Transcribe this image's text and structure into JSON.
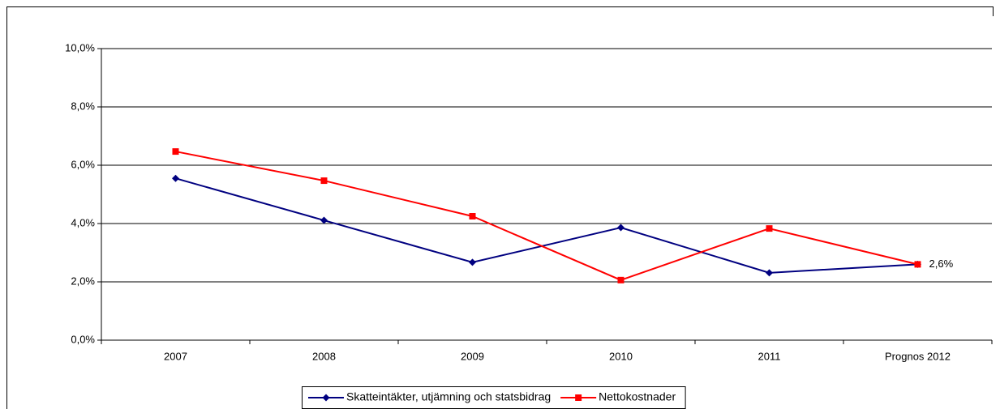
{
  "chart_data": {
    "type": "line",
    "categories": [
      "2007",
      "2008",
      "2009",
      "2010",
      "2011",
      "Prognos 2012"
    ],
    "series": [
      {
        "name": "Skatteintäkter, utjämning och statsbidrag",
        "color": "#000080",
        "marker": "diamond",
        "values": [
          5.55,
          4.11,
          2.67,
          3.86,
          2.31,
          2.6
        ]
      },
      {
        "name": "Nettokostnader",
        "color": "#ff0000",
        "marker": "square",
        "values": [
          6.47,
          5.47,
          4.25,
          2.06,
          3.83,
          2.6
        ],
        "value_labels": [
          null,
          null,
          null,
          null,
          null,
          "2,6%"
        ]
      }
    ],
    "ylim": [
      0,
      10
    ],
    "yticks": [
      {
        "value": 0,
        "label": "0,0%"
      },
      {
        "value": 2,
        "label": "2,0%"
      },
      {
        "value": 4,
        "label": "4,0%"
      },
      {
        "value": 6,
        "label": "6,0%"
      },
      {
        "value": 8,
        "label": "8,0%"
      },
      {
        "value": 10,
        "label": "10,0%"
      }
    ],
    "grid": true,
    "legend": "bottom"
  }
}
